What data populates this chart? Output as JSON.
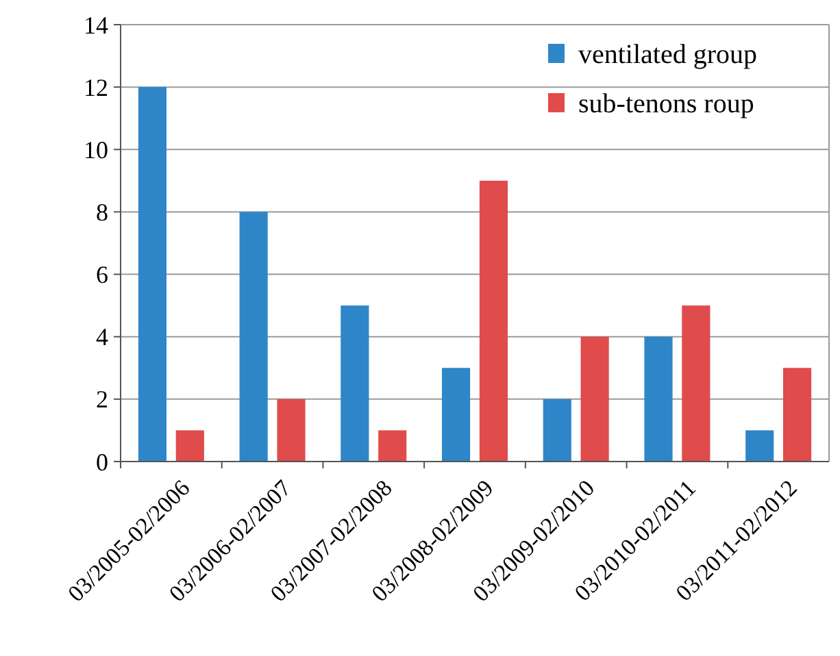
{
  "chart_data": {
    "type": "bar",
    "categories": [
      "03/2005-02/2006",
      "03/2006-02/2007",
      "03/2007-02/2008",
      "03/2008-02/2009",
      "03/2009-02/2010",
      "03/2010-02/2011",
      "03/2011-02/2012"
    ],
    "series": [
      {
        "name": "ventilated group",
        "color": "#2e86c8",
        "values": [
          12,
          8,
          5,
          3,
          2,
          4,
          1
        ]
      },
      {
        "name": "sub-tenons roup",
        "color": "#e04b4b",
        "values": [
          1,
          2,
          1,
          9,
          4,
          5,
          3
        ]
      }
    ],
    "ylim": [
      0,
      14
    ],
    "yticks": [
      0,
      2,
      4,
      6,
      8,
      10,
      12,
      14
    ],
    "grid": "y",
    "legend": "top right"
  }
}
